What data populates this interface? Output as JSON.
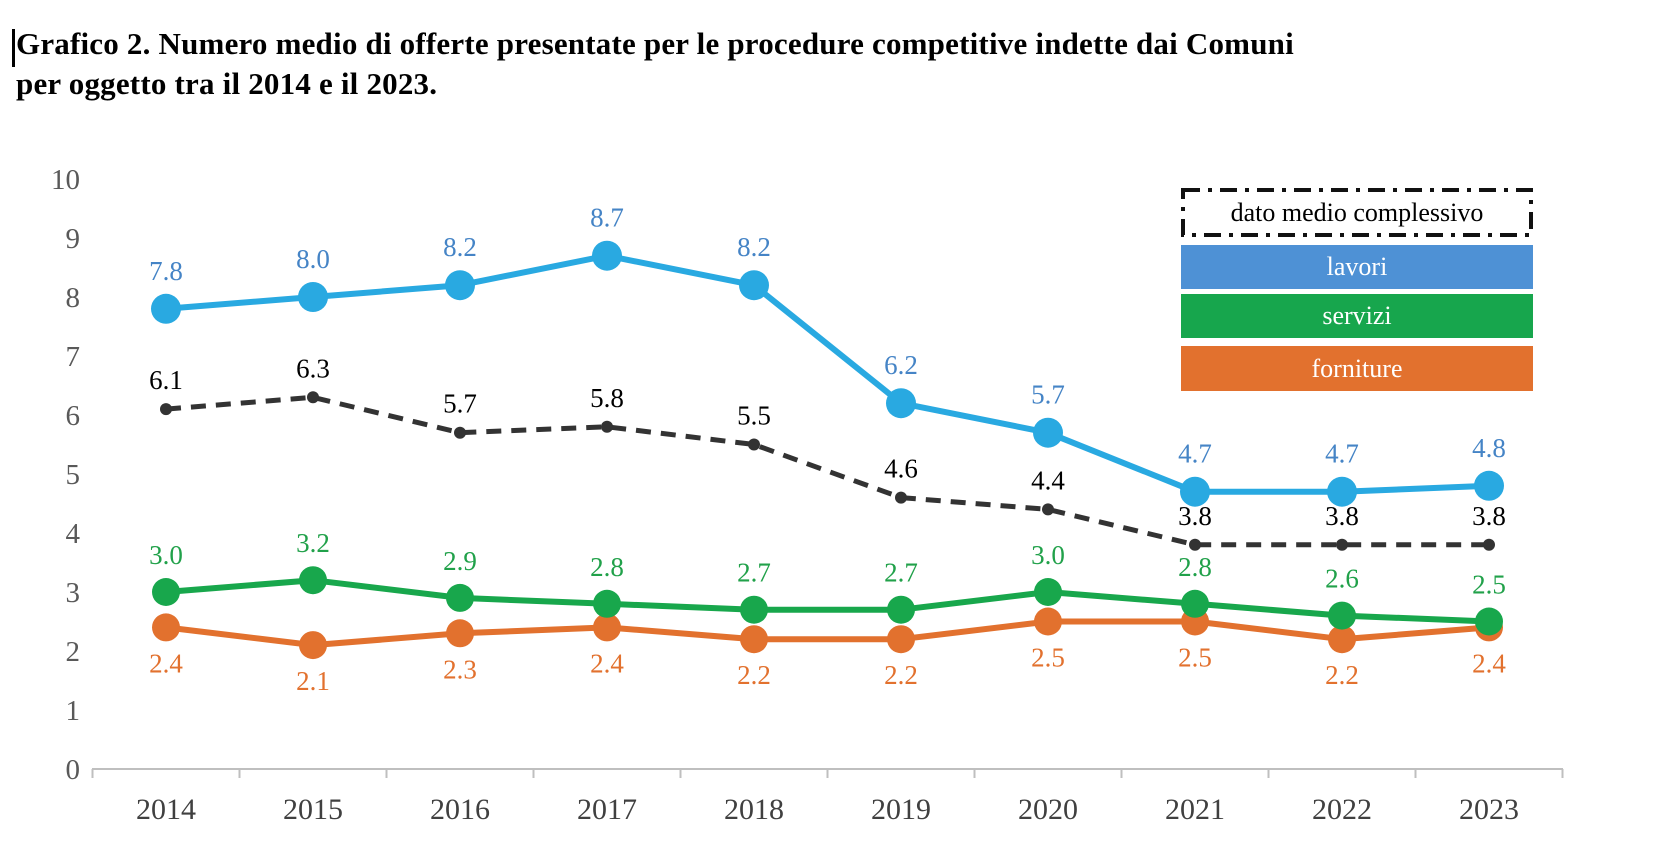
{
  "title": {
    "line1": "Grafico 2. Numero medio di offerte presentate per le procedure competitive indette dai Comuni",
    "line2": "per oggetto tra il 2014 e il 2023."
  },
  "legend": {
    "items": [
      {
        "label": "dato medio complessivo",
        "style": "dash-dot-box",
        "color": "#1a1a1a",
        "text_color": "#000000"
      },
      {
        "label": "lavori",
        "style": "bar",
        "color": "#4E91D5",
        "text_color": "#ffffff"
      },
      {
        "label": "servizi",
        "style": "bar",
        "color": "#17A64D",
        "text_color": "#ffffff"
      },
      {
        "label": "forniture",
        "style": "bar",
        "color": "#E2712E",
        "text_color": "#ffffff"
      }
    ]
  },
  "chart_data": {
    "type": "line",
    "title": "Grafico 2. Numero medio di offerte presentate per le procedure competitive indette dai Comuni per oggetto tra il 2014 e il 2023.",
    "categories": [
      "2014",
      "2015",
      "2016",
      "2017",
      "2018",
      "2019",
      "2020",
      "2021",
      "2022",
      "2023"
    ],
    "series": [
      {
        "name": "dato medio complessivo",
        "values": [
          6.1,
          6.3,
          5.7,
          5.8,
          5.5,
          4.6,
          4.4,
          3.8,
          3.8,
          3.8
        ],
        "line_color": "#333333",
        "label_color": "#000000",
        "dash": true,
        "marker_radius": 6,
        "line_width": 5,
        "label_position": "above"
      },
      {
        "name": "lavori",
        "values": [
          7.8,
          8.0,
          8.2,
          8.7,
          8.2,
          6.2,
          5.7,
          4.7,
          4.7,
          4.8
        ],
        "line_color": "#29A9E1",
        "label_color": "#4584C6",
        "dash": false,
        "marker_radius": 15,
        "line_width": 6,
        "label_position": "above"
      },
      {
        "name": "forniture",
        "values": [
          2.4,
          2.1,
          2.3,
          2.4,
          2.2,
          2.2,
          2.5,
          2.5,
          2.2,
          2.4
        ],
        "line_color": "#E2712E",
        "label_color": "#E2712E",
        "dash": false,
        "marker_radius": 14,
        "line_width": 6,
        "label_position": "below"
      },
      {
        "name": "servizi",
        "values": [
          3.0,
          3.2,
          2.9,
          2.8,
          2.7,
          2.7,
          3.0,
          2.8,
          2.6,
          2.5
        ],
        "line_color": "#18A74C",
        "label_color": "#21A14A",
        "dash": false,
        "marker_radius": 14,
        "line_width": 6,
        "label_position": "above"
      }
    ],
    "xlabel": "",
    "ylabel": "",
    "ylim": [
      0,
      10
    ],
    "yticks": [
      0,
      1,
      2,
      3,
      4,
      5,
      6,
      7,
      8,
      9,
      10
    ],
    "grid": false,
    "legend_position": "top-right",
    "axis_color": "#BFBFBF",
    "ytick_label_color": "#595959",
    "xtick_label_color": "#404040",
    "decimal_places": 1
  }
}
